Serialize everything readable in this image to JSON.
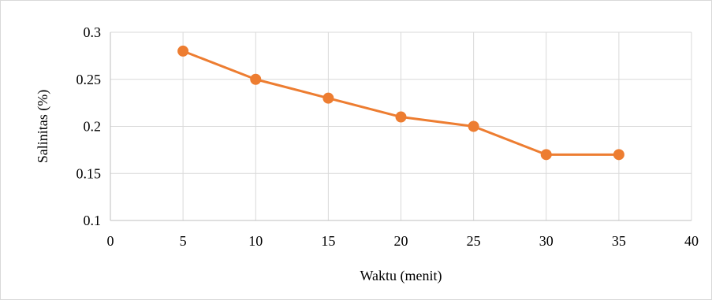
{
  "chart_data": {
    "type": "line",
    "title": "",
    "xlabel": "Waktu (menit)",
    "ylabel": "Salinitas (%)",
    "xlim": [
      0,
      40
    ],
    "ylim": [
      0.1,
      0.3
    ],
    "x_ticks": [
      "0",
      "5",
      "10",
      "15",
      "20",
      "25",
      "30",
      "35",
      "40"
    ],
    "y_ticks": [
      "0.1",
      "0.15",
      "0.2",
      "0.25",
      "0.3"
    ],
    "x_tick_values": [
      0,
      5,
      10,
      15,
      20,
      25,
      30,
      35,
      40
    ],
    "y_tick_values": [
      0.1,
      0.15,
      0.2,
      0.25,
      0.3
    ],
    "grid": {
      "horizontal": true,
      "vertical": true
    },
    "legend": "none",
    "series": [
      {
        "color": "#ed7d31",
        "x": [
          5,
          10,
          15,
          20,
          25,
          30,
          35
        ],
        "y": [
          0.28,
          0.25,
          0.23,
          0.21,
          0.2,
          0.17,
          0.17
        ]
      }
    ]
  }
}
